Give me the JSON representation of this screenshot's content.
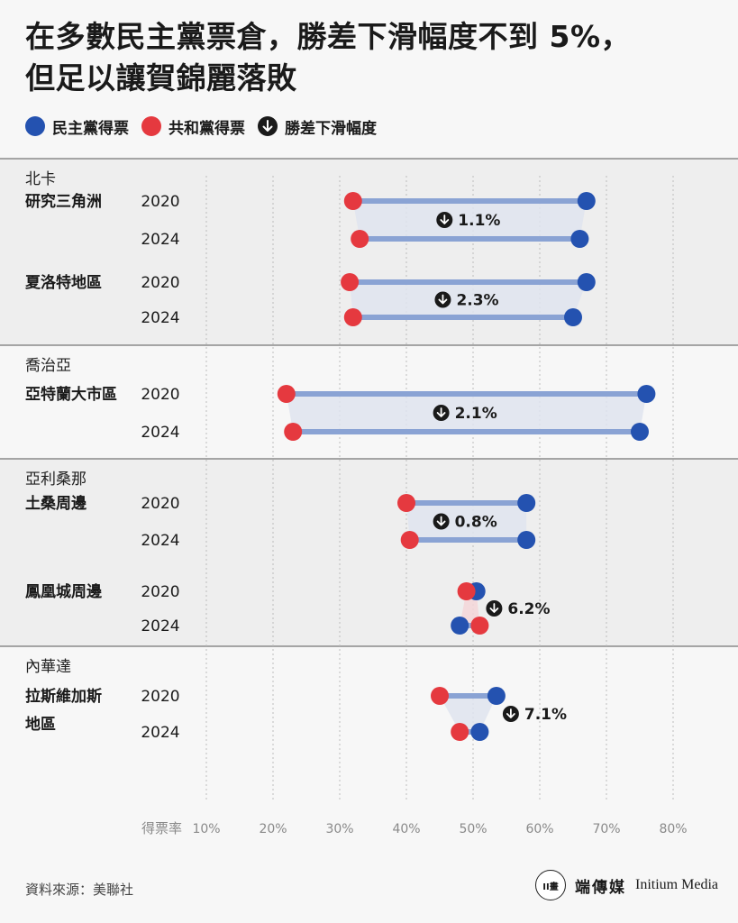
{
  "title_lines": [
    "在多數民主黨票倉，勝差下滑幅度不到 5%，",
    "但足以讓賀錦麗落敗"
  ],
  "legend": {
    "dem_label": "民主黨得票",
    "rep_label": "共和黨得票",
    "drop_label": "勝差下滑幅度"
  },
  "colors": {
    "dem": "#2452b0",
    "rep": "#e5393f",
    "bar": "#8aa3d4",
    "band": "#dfe4ef",
    "band_red": "#f3d6d8",
    "shade": "#eeeeee",
    "arrow": "#1a1a1a"
  },
  "source": "資料來源：美聯社",
  "brand": {
    "logo_text": "II畫",
    "name_cn": "端傳媒",
    "name_en": "Initium Media"
  },
  "chart_data": {
    "type": "dumbbell",
    "x_axis_label": "得票率",
    "xlim": [
      10,
      80
    ],
    "x_ticks": [
      "10%",
      "20%",
      "30%",
      "40%",
      "50%",
      "60%",
      "70%",
      "80%"
    ],
    "grid": true,
    "groups": [
      {
        "state": "北卡",
        "shaded": true,
        "items": [
          {
            "name": "研究三角洲",
            "margin_drop": "1.1%",
            "years": [
              {
                "year": "2020",
                "rep": 32,
                "dem": 67
              },
              {
                "year": "2024",
                "rep": 33,
                "dem": 66
              }
            ]
          },
          {
            "name": "夏洛特地區",
            "margin_drop": "2.3%",
            "years": [
              {
                "year": "2020",
                "rep": 31.5,
                "dem": 67
              },
              {
                "year": "2024",
                "rep": 32,
                "dem": 65
              }
            ]
          }
        ]
      },
      {
        "state": "喬治亞",
        "shaded": false,
        "items": [
          {
            "name": "亞特蘭大市區",
            "margin_drop": "2.1%",
            "years": [
              {
                "year": "2020",
                "rep": 22,
                "dem": 76
              },
              {
                "year": "2024",
                "rep": 23,
                "dem": 75
              }
            ]
          }
        ]
      },
      {
        "state": "亞利桑那",
        "shaded": true,
        "items": [
          {
            "name": "土桑周邊",
            "margin_drop": "0.8%",
            "years": [
              {
                "year": "2020",
                "rep": 40,
                "dem": 58
              },
              {
                "year": "2024",
                "rep": 40.5,
                "dem": 58
              }
            ]
          },
          {
            "name": "鳳凰城周邊",
            "margin_drop": "6.2%",
            "years": [
              {
                "year": "2020",
                "rep": 49,
                "dem": 50.5
              },
              {
                "year": "2024",
                "rep": 51,
                "dem": 48
              }
            ]
          }
        ]
      },
      {
        "state": "內華達",
        "shaded": false,
        "items": [
          {
            "name": "拉斯維加斯地區",
            "margin_drop": "7.1%",
            "years": [
              {
                "year": "2020",
                "rep": 45,
                "dem": 53.5
              },
              {
                "year": "2024",
                "rep": 48,
                "dem": 51
              }
            ]
          }
        ]
      }
    ]
  }
}
